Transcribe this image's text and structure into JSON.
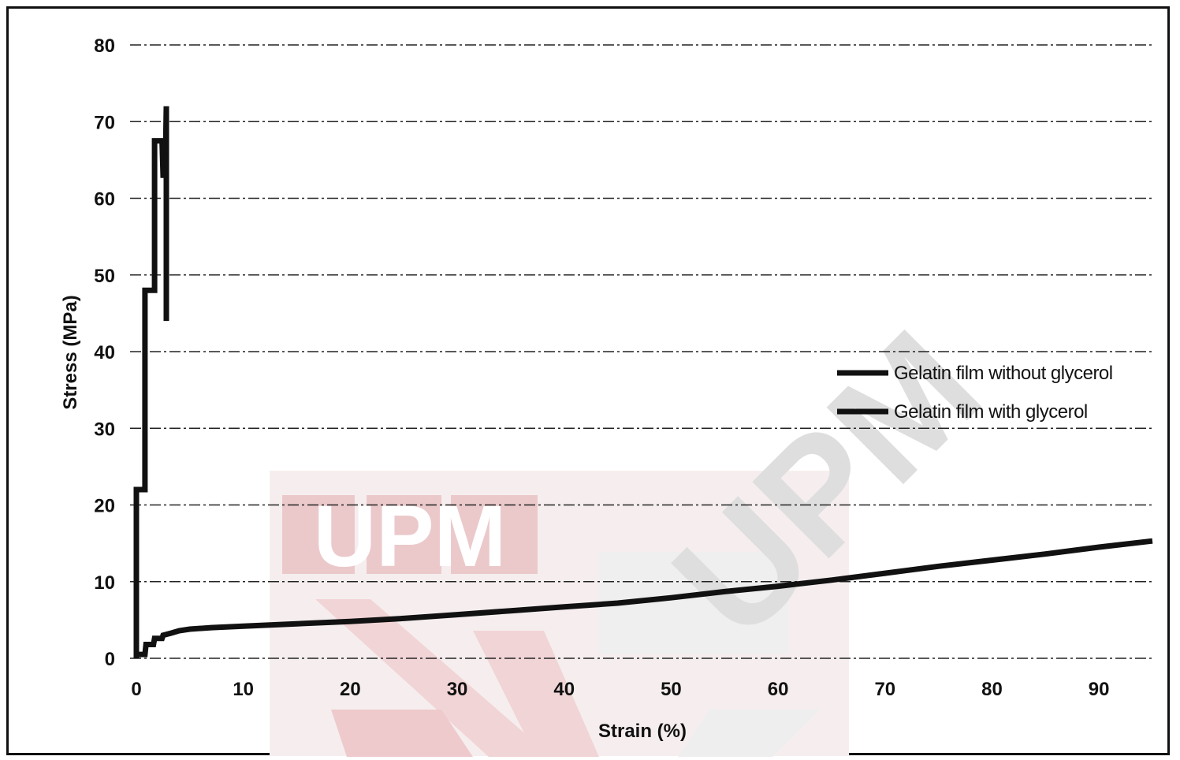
{
  "chart_data": {
    "type": "line",
    "xlabel": "Strain (%)",
    "ylabel": "Stress (MPa)",
    "xlim": [
      0,
      95
    ],
    "ylim": [
      0,
      80
    ],
    "x_ticks": [
      0,
      10,
      20,
      30,
      40,
      50,
      60,
      70,
      80,
      90
    ],
    "y_ticks": [
      0,
      10,
      20,
      30,
      40,
      50,
      60,
      70,
      80
    ],
    "grid": true,
    "legend_position": "right",
    "series": [
      {
        "name": "Gelatin film without glycerol",
        "color": "#111111",
        "x": [
          0,
          0,
          0.7,
          0.8,
          0.8,
          1.6,
          1.7,
          1.7,
          2.4,
          2.5,
          2.7,
          2.8,
          2.8,
          2.8
        ],
        "y": [
          0,
          22,
          22,
          22,
          48,
          48,
          48,
          67.5,
          67.5,
          63,
          63,
          72,
          58,
          44
        ]
      },
      {
        "name": "Gelatin film with glycerol",
        "color": "#111111",
        "x": [
          0,
          0.8,
          0.9,
          1.6,
          1.7,
          2.4,
          2.5,
          3.3,
          4,
          5,
          7,
          10,
          15,
          20,
          25,
          30,
          35,
          40,
          45,
          50,
          55,
          60,
          65,
          70,
          75,
          80,
          85,
          90,
          95
        ],
        "y": [
          0.5,
          0.5,
          1.8,
          1.8,
          2.6,
          2.6,
          3.0,
          3.3,
          3.6,
          3.8,
          4.0,
          4.2,
          4.5,
          4.8,
          5.2,
          5.7,
          6.2,
          6.7,
          7.2,
          7.9,
          8.7,
          9.4,
          10.2,
          11.1,
          12.0,
          12.8,
          13.6,
          14.5,
          15.3
        ]
      }
    ]
  },
  "watermark": {
    "logo_text": "UPM",
    "diagonal_text": "UPM",
    "colors": {
      "logo_red": "#e8c4c6",
      "stripe_red": "#f0d6d8",
      "diag_gray": "#dcdcdc"
    }
  }
}
